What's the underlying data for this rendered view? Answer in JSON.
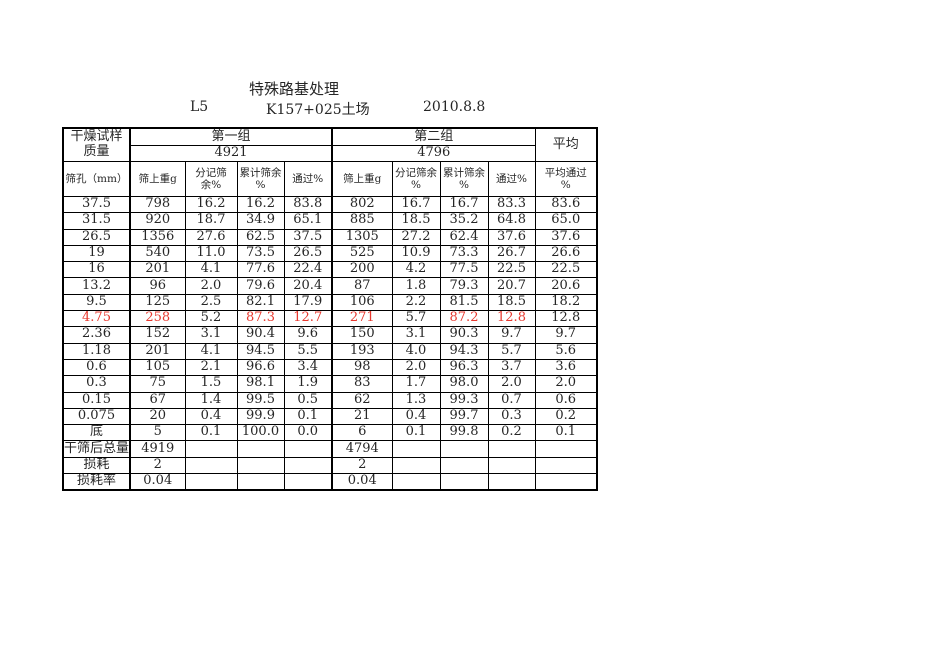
{
  "colors": {
    "text": "#262626",
    "highlight_red": "#e8392f",
    "border": "#000000",
    "background": "#ffffff"
  },
  "page": {
    "title": "特殊路基处理",
    "subtitle_l5": "L5",
    "subtitle_site": "K157+025土场",
    "subtitle_date": "2010.8.8"
  },
  "table": {
    "dry_sample_mass_label": "干燥试样\n质量",
    "group1_label": "第一组",
    "group2_label": "第二组",
    "average_label": "平均",
    "group1_mass": "4921",
    "group2_mass": "4796",
    "sieve_size_label": "筛孔（mm）",
    "group1_cols": [
      "筛上重g",
      "分记筛余%",
      "累计筛余\n%",
      "通过%"
    ],
    "group2_cols": [
      "筛上重g",
      "分记筛余\n%",
      "累计筛余\n%",
      "通过%"
    ],
    "avg_col_label": "平均通过\n%",
    "rows": [
      {
        "size": "37.5",
        "g1": [
          "798",
          "16.2",
          "16.2",
          "83.8"
        ],
        "g2": [
          "802",
          "16.7",
          "16.7",
          "83.3"
        ],
        "avg": "83.6"
      },
      {
        "size": "31.5",
        "g1": [
          "920",
          "18.7",
          "34.9",
          "65.1"
        ],
        "g2": [
          "885",
          "18.5",
          "35.2",
          "64.8"
        ],
        "avg": "65.0"
      },
      {
        "size": "26.5",
        "g1": [
          "1356",
          "27.6",
          "62.5",
          "37.5"
        ],
        "g2": [
          "1305",
          "27.2",
          "62.4",
          "37.6"
        ],
        "avg": "37.6"
      },
      {
        "size": "19",
        "g1": [
          "540",
          "11.0",
          "73.5",
          "26.5"
        ],
        "g2": [
          "525",
          "10.9",
          "73.3",
          "26.7"
        ],
        "avg": "26.6"
      },
      {
        "size": "16",
        "g1": [
          "201",
          "4.1",
          "77.6",
          "22.4"
        ],
        "g2": [
          "200",
          "4.2",
          "77.5",
          "22.5"
        ],
        "avg": "22.5"
      },
      {
        "size": "13.2",
        "g1": [
          "96",
          "2.0",
          "79.6",
          "20.4"
        ],
        "g2": [
          "87",
          "1.8",
          "79.3",
          "20.7"
        ],
        "avg": "20.6"
      },
      {
        "size": "9.5",
        "g1": [
          "125",
          "2.5",
          "82.1",
          "17.9"
        ],
        "g2": [
          "106",
          "2.2",
          "81.5",
          "18.5"
        ],
        "avg": "18.2"
      },
      {
        "size": "4.75",
        "g1": [
          "258",
          "5.2",
          "87.3",
          "12.7"
        ],
        "g2": [
          "271",
          "5.7",
          "87.2",
          "12.8"
        ],
        "avg": "12.8",
        "red": {
          "size": true,
          "g1": [
            true,
            false,
            true,
            true
          ],
          "g2": [
            true,
            false,
            true,
            true
          ],
          "avg": false
        }
      },
      {
        "size": "2.36",
        "g1": [
          "152",
          "3.1",
          "90.4",
          "9.6"
        ],
        "g2": [
          "150",
          "3.1",
          "90.3",
          "9.7"
        ],
        "avg": "9.7"
      },
      {
        "size": "1.18",
        "g1": [
          "201",
          "4.1",
          "94.5",
          "5.5"
        ],
        "g2": [
          "193",
          "4.0",
          "94.3",
          "5.7"
        ],
        "avg": "5.6"
      },
      {
        "size": "0.6",
        "g1": [
          "105",
          "2.1",
          "96.6",
          "3.4"
        ],
        "g2": [
          "98",
          "2.0",
          "96.3",
          "3.7"
        ],
        "avg": "3.6"
      },
      {
        "size": "0.3",
        "g1": [
          "75",
          "1.5",
          "98.1",
          "1.9"
        ],
        "g2": [
          "83",
          "1.7",
          "98.0",
          "2.0"
        ],
        "avg": "2.0"
      },
      {
        "size": "0.15",
        "g1": [
          "67",
          "1.4",
          "99.5",
          "0.5"
        ],
        "g2": [
          "62",
          "1.3",
          "99.3",
          "0.7"
        ],
        "avg": "0.6"
      },
      {
        "size": "0.075",
        "g1": [
          "20",
          "0.4",
          "99.9",
          "0.1"
        ],
        "g2": [
          "21",
          "0.4",
          "99.7",
          "0.3"
        ],
        "avg": "0.2"
      },
      {
        "size": "底",
        "g1": [
          "5",
          "0.1",
          "100.0",
          "0.0"
        ],
        "g2": [
          "6",
          "0.1",
          "99.8",
          "0.2"
        ],
        "avg": "0.1"
      }
    ],
    "summary": [
      {
        "label": "干筛后总量",
        "g1": "4919",
        "g2": "4794"
      },
      {
        "label": "损耗",
        "g1": "2",
        "g2": "2"
      },
      {
        "label": "损耗率",
        "g1": "0.04",
        "g2": "0.04"
      }
    ]
  }
}
